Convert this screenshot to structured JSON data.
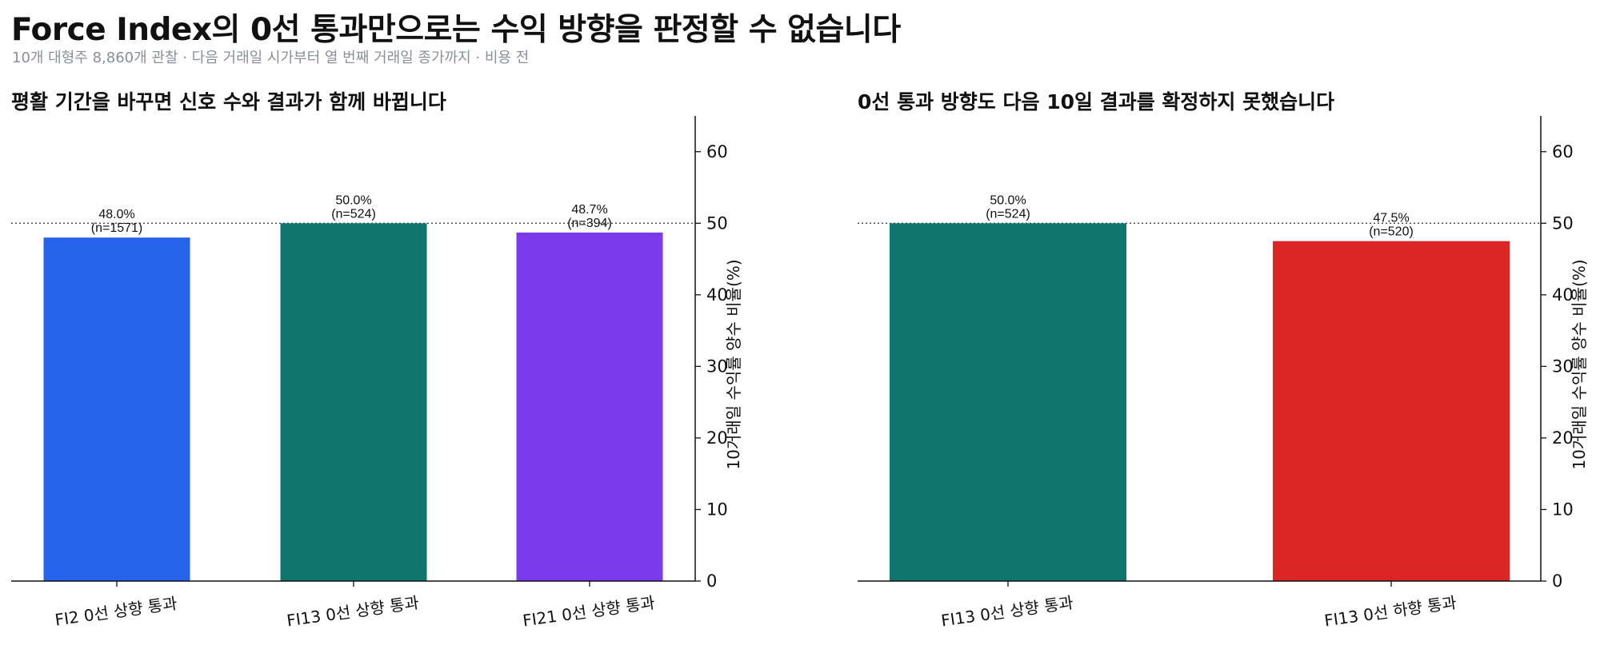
{
  "title": "Force Index의 0선 통과만으로는 수익 방향을 판정할 수 없습니다",
  "subtitle": "10개 대형주 8,860개 관찰 · 다음 거래일 시가부터 열 번째 거래일 종가까지 · 비용 전",
  "chart_data": [
    {
      "type": "bar",
      "title": "평활 기간을 바꾸면 신호 수와 결과가 함께 바뀝니다",
      "ylabel": "10거래일 수익률 양수 비율(%)",
      "ylim": [
        0,
        65
      ],
      "yticks": [
        0,
        10,
        20,
        30,
        40,
        50,
        60
      ],
      "reference_line": 50,
      "categories": [
        "FI2 0선 상향 통과",
        "FI13 0선 상향 통과",
        "FI21 0선 상향 통과"
      ],
      "values": [
        48.0,
        50.0,
        48.7
      ],
      "value_labels": [
        "48.0%",
        "50.0%",
        "48.7%"
      ],
      "count_labels": [
        "(n=1571)",
        "(n=524)",
        "(n=394)"
      ],
      "colors": [
        "#2563eb",
        "#0f766e",
        "#7c3aed"
      ]
    },
    {
      "type": "bar",
      "title": "0선 통과 방향도 다음 10일 결과를 확정하지 못했습니다",
      "ylabel": "10거래일 수익률 양수 비율(%)",
      "ylim": [
        0,
        65
      ],
      "yticks": [
        0,
        10,
        20,
        30,
        40,
        50,
        60
      ],
      "reference_line": 50,
      "categories": [
        "FI13 0선 상향 통과",
        "FI13 0선 하향 통과"
      ],
      "values": [
        50.0,
        47.5
      ],
      "value_labels": [
        "50.0%",
        "47.5%"
      ],
      "count_labels": [
        "(n=524)",
        "(n=520)"
      ],
      "colors": [
        "#0f766e",
        "#dc2626"
      ]
    }
  ]
}
